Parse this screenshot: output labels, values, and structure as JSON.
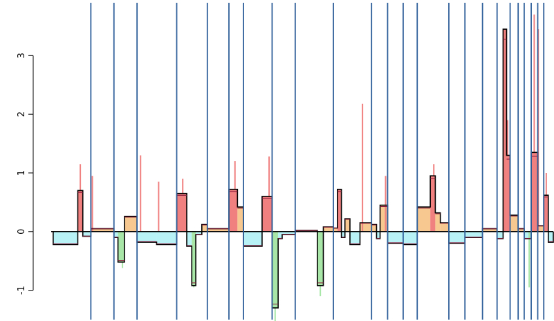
{
  "chart_data": {
    "type": "bar",
    "title": "",
    "xlabel": "",
    "ylabel": "",
    "ylim": [
      -1.5,
      3.9
    ],
    "xlim": [
      0,
      100
    ],
    "yticks": [
      -1,
      0,
      1,
      2,
      3
    ],
    "ytick_labels": [
      "-1",
      "0",
      "1",
      "2",
      "3"
    ],
    "grid": false,
    "colors": {
      "positive_strong": "#f08080",
      "positive_weak": "#f7c88f",
      "negative_weak": "#b8f2f7",
      "negative_strong": "#a8e6a8",
      "step_line": "#000000",
      "segment_line": "#8b1a3a",
      "separator": "#2f5f9a"
    },
    "separators_x": [
      7.9,
      12.5,
      17.1,
      25.0,
      31.1,
      35.4,
      38.3,
      44.0,
      48.6,
      56.2,
      63.8,
      67.0,
      70.1,
      72.9,
      79.2,
      82.4,
      85.9,
      88.8,
      91.4,
      93.0,
      94.2,
      95.6,
      96.9,
      98.1
    ],
    "series": [
      {
        "name": "",
        "segments": [
          {
            "x0": 0.4,
            "x1": 5.3,
            "y": -0.22,
            "fill": "negative_weak"
          },
          {
            "x0": 5.3,
            "x1": 6.3,
            "y": 0.7,
            "fill": "positive_strong"
          },
          {
            "x0": 6.3,
            "x1": 7.9,
            "y": -0.08,
            "fill": "negative_weak"
          },
          {
            "x0": 7.9,
            "x1": 12.5,
            "y": 0.05,
            "fill": "positive_weak"
          },
          {
            "x0": 12.5,
            "x1": 13.3,
            "y": -0.1,
            "fill": "negative_weak"
          },
          {
            "x0": 13.3,
            "x1": 14.6,
            "y": -0.52,
            "fill": "negative_strong"
          },
          {
            "x0": 14.6,
            "x1": 17.1,
            "y": 0.26,
            "fill": "positive_weak"
          },
          {
            "x0": 17.1,
            "x1": 21.0,
            "y": -0.18,
            "fill": "negative_weak"
          },
          {
            "x0": 21.0,
            "x1": 25.0,
            "y": -0.22,
            "fill": "negative_weak"
          },
          {
            "x0": 25.0,
            "x1": 27.0,
            "y": 0.65,
            "fill": "positive_strong"
          },
          {
            "x0": 27.0,
            "x1": 28.0,
            "y": -0.25,
            "fill": "negative_weak"
          },
          {
            "x0": 28.0,
            "x1": 28.8,
            "y": -0.92,
            "fill": "negative_strong"
          },
          {
            "x0": 28.8,
            "x1": 30.0,
            "y": -0.05,
            "fill": "negative_weak"
          },
          {
            "x0": 30.0,
            "x1": 31.1,
            "y": 0.12,
            "fill": "positive_weak"
          },
          {
            "x0": 31.1,
            "x1": 35.4,
            "y": 0.05,
            "fill": "positive_weak"
          },
          {
            "x0": 35.4,
            "x1": 37.1,
            "y": 0.72,
            "fill": "positive_strong"
          },
          {
            "x0": 37.1,
            "x1": 38.3,
            "y": 0.42,
            "fill": "positive_weak"
          },
          {
            "x0": 38.3,
            "x1": 42.0,
            "y": -0.25,
            "fill": "negative_weak"
          },
          {
            "x0": 42.0,
            "x1": 44.0,
            "y": 0.6,
            "fill": "positive_strong"
          },
          {
            "x0": 44.0,
            "x1": 45.2,
            "y": -1.3,
            "fill": "negative_strong"
          },
          {
            "x0": 45.2,
            "x1": 46.0,
            "y": -0.12,
            "fill": "negative_weak"
          },
          {
            "x0": 46.0,
            "x1": 48.6,
            "y": -0.05,
            "fill": "negative_weak"
          },
          {
            "x0": 48.6,
            "x1": 53.0,
            "y": 0.02,
            "fill": "positive_weak"
          },
          {
            "x0": 53.0,
            "x1": 54.2,
            "y": -0.92,
            "fill": "negative_strong"
          },
          {
            "x0": 54.2,
            "x1": 56.2,
            "y": 0.08,
            "fill": "positive_weak"
          },
          {
            "x0": 56.2,
            "x1": 57.0,
            "y": 0.06,
            "fill": "positive_weak"
          },
          {
            "x0": 57.0,
            "x1": 57.8,
            "y": 0.72,
            "fill": "positive_strong"
          },
          {
            "x0": 57.8,
            "x1": 58.5,
            "y": -0.1,
            "fill": "negative_weak"
          },
          {
            "x0": 58.5,
            "x1": 59.5,
            "y": 0.22,
            "fill": "positive_weak"
          },
          {
            "x0": 59.5,
            "x1": 61.5,
            "y": -0.22,
            "fill": "negative_weak"
          },
          {
            "x0": 61.5,
            "x1": 63.8,
            "y": 0.15,
            "fill": "positive_weak"
          },
          {
            "x0": 63.8,
            "x1": 64.8,
            "y": 0.12,
            "fill": "positive_weak"
          },
          {
            "x0": 64.8,
            "x1": 65.5,
            "y": -0.12,
            "fill": "negative_weak"
          },
          {
            "x0": 65.5,
            "x1": 67.0,
            "y": 0.45,
            "fill": "positive_weak"
          },
          {
            "x0": 67.0,
            "x1": 70.1,
            "y": -0.2,
            "fill": "negative_weak"
          },
          {
            "x0": 70.1,
            "x1": 72.9,
            "y": -0.22,
            "fill": "negative_weak"
          },
          {
            "x0": 72.9,
            "x1": 75.5,
            "y": 0.42,
            "fill": "positive_weak"
          },
          {
            "x0": 75.5,
            "x1": 76.5,
            "y": 0.95,
            "fill": "positive_strong"
          },
          {
            "x0": 76.5,
            "x1": 77.5,
            "y": 0.32,
            "fill": "positive_weak"
          },
          {
            "x0": 77.5,
            "x1": 79.2,
            "y": 0.15,
            "fill": "positive_weak"
          },
          {
            "x0": 79.2,
            "x1": 82.4,
            "y": -0.2,
            "fill": "negative_weak"
          },
          {
            "x0": 82.4,
            "x1": 85.9,
            "y": -0.1,
            "fill": "negative_weak"
          },
          {
            "x0": 85.9,
            "x1": 88.8,
            "y": 0.05,
            "fill": "positive_weak"
          },
          {
            "x0": 88.8,
            "x1": 90.0,
            "y": -0.12,
            "fill": "negative_weak"
          },
          {
            "x0": 90.0,
            "x1": 90.7,
            "y": 3.45,
            "fill": "positive_strong"
          },
          {
            "x0": 90.7,
            "x1": 91.4,
            "y": 1.3,
            "fill": "positive_strong"
          },
          {
            "x0": 91.4,
            "x1": 93.0,
            "y": 0.28,
            "fill": "positive_weak"
          },
          {
            "x0": 93.0,
            "x1": 94.2,
            "y": 0.05,
            "fill": "positive_weak"
          },
          {
            "x0": 94.2,
            "x1": 95.6,
            "y": -0.12,
            "fill": "negative_weak"
          },
          {
            "x0": 95.6,
            "x1": 96.9,
            "y": 1.35,
            "fill": "positive_strong"
          },
          {
            "x0": 96.9,
            "x1": 98.1,
            "y": 0.1,
            "fill": "positive_weak"
          },
          {
            "x0": 98.1,
            "x1": 99.0,
            "y": 0.62,
            "fill": "positive_strong"
          },
          {
            "x0": 99.0,
            "x1": 100.0,
            "y": -0.18,
            "fill": "negative_weak"
          }
        ],
        "spikes": [
          {
            "x": 5.8,
            "y": 1.15
          },
          {
            "x": 8.2,
            "y": 0.95
          },
          {
            "x": 17.8,
            "y": 1.3
          },
          {
            "x": 21.4,
            "y": 0.85
          },
          {
            "x": 26.2,
            "y": 0.9
          },
          {
            "x": 36.6,
            "y": 1.2
          },
          {
            "x": 43.4,
            "y": 1.28
          },
          {
            "x": 44.6,
            "y": -1.55
          },
          {
            "x": 62.0,
            "y": 2.18
          },
          {
            "x": 66.6,
            "y": 0.95
          },
          {
            "x": 76.2,
            "y": 1.15
          },
          {
            "x": 90.3,
            "y": 3.2
          },
          {
            "x": 90.9,
            "y": 1.9
          },
          {
            "x": 95.2,
            "y": -0.95
          },
          {
            "x": 96.2,
            "y": 3.7
          },
          {
            "x": 97.0,
            "y": 3.45
          },
          {
            "x": 98.6,
            "y": 1.0
          },
          {
            "x": 53.6,
            "y": -1.1
          },
          {
            "x": 28.4,
            "y": -0.95
          },
          {
            "x": 14.2,
            "y": -0.62
          }
        ]
      }
    ]
  }
}
